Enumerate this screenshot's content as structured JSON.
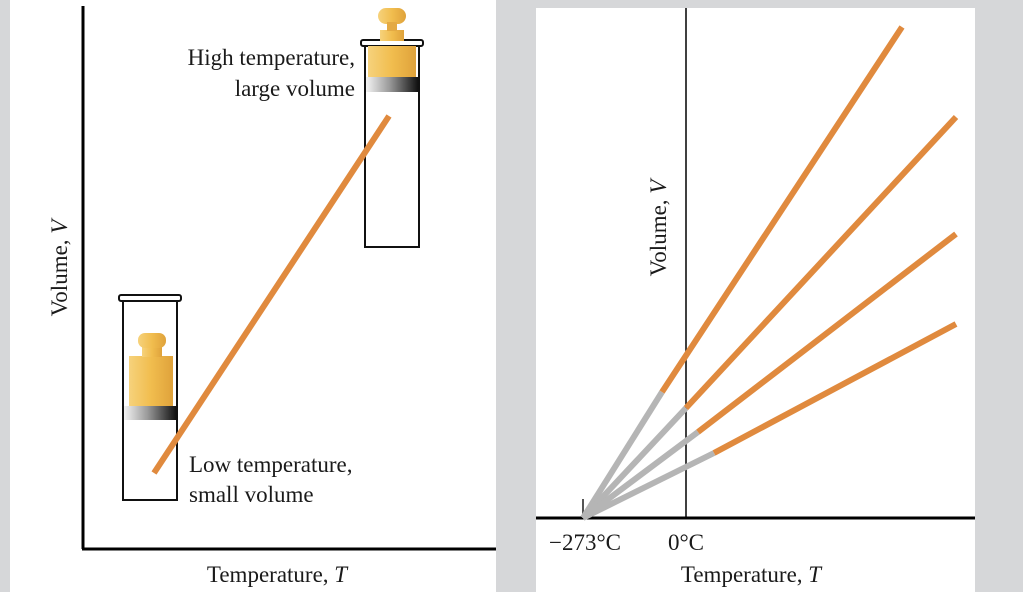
{
  "left_panel": {
    "y_axis_label": "Volume,",
    "y_axis_symbol": "V",
    "x_axis_label": "Temperature,",
    "x_axis_symbol": "T",
    "annotation_high_line1": "High temperature,",
    "annotation_high_line2": "large volume",
    "annotation_low_line1": "Low temperature,",
    "annotation_low_line2": "small volume"
  },
  "right_panel": {
    "y_axis_label": "Volume,",
    "y_axis_symbol": "V",
    "x_axis_label": "Temperature,",
    "x_axis_symbol": "T",
    "tick_absolute_zero": "−273°C",
    "tick_zero": "0°C",
    "line_count": 4
  },
  "colors": {
    "line_orange": "#e08a3e",
    "extrapolation_gray": "#b5b5b5",
    "weight_gold": "#efbf52",
    "background": "#d6d7d9",
    "panel": "#ffffff"
  }
}
